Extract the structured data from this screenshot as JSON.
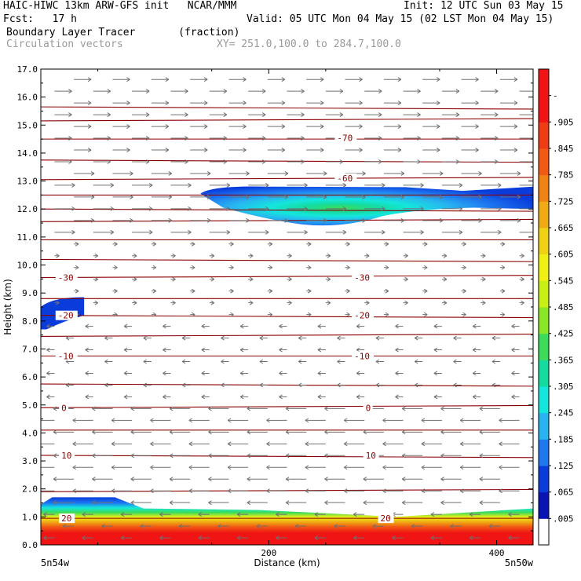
{
  "header": {
    "title_left": "HAIC-HIWC 13km ARW-GFS init   NCAR/MMM",
    "init": "Init: 12 UTC Sun 03 May 15",
    "fcst": "Fcst:   17 h",
    "valid": "Valid: 05 UTC Mon 04 May 15 (02 LST Mon 04 May 15)",
    "field": "Boundary Layer Tracer       (fraction)",
    "vectors": "Circulation vectors",
    "xy": "XY= 251.0,100.0 to 284.7,100.0"
  },
  "chart_data": {
    "type": "heatmap",
    "title": "Boundary Layer Tracer",
    "units": "(fraction)",
    "xlabel": "Distance (km)",
    "ylabel": "Height (km)",
    "xlim": [
      0,
      432
    ],
    "ylim": [
      0,
      17
    ],
    "x_ticks": [
      0,
      200,
      400
    ],
    "x_tick_labels": [
      "",
      "200",
      "400"
    ],
    "y_ticks": [
      0,
      1,
      2,
      3,
      4,
      5,
      6,
      7,
      8,
      9,
      10,
      11,
      12,
      13,
      14,
      15,
      16,
      17
    ],
    "y_tick_labels": [
      "0.0",
      "1.0",
      "2.0",
      "3.0",
      "4.0",
      "5.0",
      "6.0",
      "7.0",
      "8.0",
      "9.0",
      "10.0",
      "11.0",
      "12.0",
      "13.0",
      "14.0",
      "15.0",
      "16.0",
      "17.0"
    ],
    "endpoint_labels": [
      "5n54w",
      "5n50w"
    ],
    "colorbar": {
      "labels": [
        "",
        ".005",
        ".065",
        ".125",
        ".185",
        ".245",
        ".305",
        ".365",
        ".425",
        ".485",
        ".545",
        ".605",
        ".665",
        ".725",
        ".785",
        ".845",
        ".905",
        "-"
      ],
      "colors": [
        "#ffffff",
        "#0a14b4",
        "#0a3cdc",
        "#1e78f0",
        "#28b4f0",
        "#14e6dc",
        "#14dca0",
        "#3cdc5a",
        "#8ce628",
        "#c8f014",
        "#f0f014",
        "#f0d214",
        "#f0aa14",
        "#f08214",
        "#f05a14",
        "#f03c14",
        "#f01414",
        "#f01414"
      ]
    },
    "temperature_labels": [
      {
        "text": "-70",
        "x": 260,
        "y": 14.55
      },
      {
        "text": "-60",
        "x": 260,
        "y": 13.1
      },
      {
        "text": "-30",
        "x": 15,
        "y": 9.55
      },
      {
        "text": "-30",
        "x": 275,
        "y": 9.55
      },
      {
        "text": "-20",
        "x": 15,
        "y": 8.2
      },
      {
        "text": "-20",
        "x": 275,
        "y": 8.2
      },
      {
        "text": "-10",
        "x": 15,
        "y": 6.75
      },
      {
        "text": "-10",
        "x": 275,
        "y": 6.75
      },
      {
        "text": "0",
        "x": 18,
        "y": 4.9
      },
      {
        "text": "0",
        "x": 285,
        "y": 4.9
      },
      {
        "text": "10",
        "x": 18,
        "y": 3.2
      },
      {
        "text": "10",
        "x": 285,
        "y": 3.2
      },
      {
        "text": "20",
        "x": 18,
        "y": 0.95
      },
      {
        "text": "20",
        "x": 298,
        "y": 0.95
      }
    ],
    "isotherm_heights": [
      0.0,
      0.95,
      1.9,
      3.2,
      4.1,
      4.9,
      5.75,
      6.75,
      7.45,
      8.2,
      8.8,
      9.55,
      10.2,
      10.9,
      11.55,
      12.0,
      12.5,
      13.05,
      13.75,
      14.5,
      15.15,
      15.65
    ],
    "shapes": {
      "upper_tracer_layer": {
        "x_range": [
          140,
          432
        ],
        "y_range": [
          11.4,
          12.8
        ],
        "peak": 0.3,
        "peak_x": 255,
        "peak_y": 12.15
      },
      "left_tracer_patch": {
        "x_range": [
          0,
          38
        ],
        "y_range": [
          7.7,
          8.85
        ],
        "peak": 0.02
      },
      "boundary_layer": {
        "top_profile_x": [
          0,
          10,
          65,
          90,
          190,
          290,
          310,
          330,
          432
        ],
        "top_profile_y": [
          1.45,
          1.7,
          1.7,
          1.3,
          1.25,
          1.05,
          1.0,
          1.05,
          1.3
        ],
        "surface_value": 0.95
      }
    }
  }
}
